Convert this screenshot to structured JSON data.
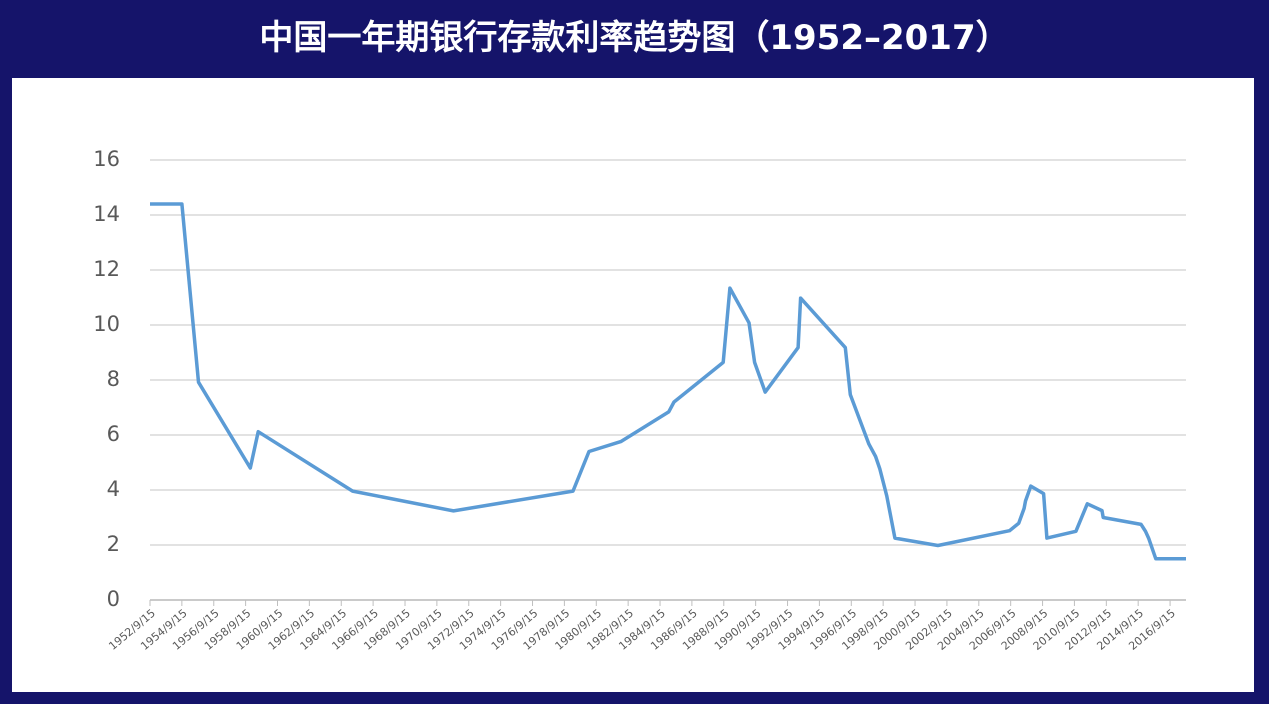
{
  "chart_data": {
    "type": "line",
    "title": "中国一年期银行存款利率趋势图（1952–2017）",
    "x": [
      "1952/9/15",
      "1954/9/15",
      "1955/10/1",
      "1959/1/1",
      "1959/7/1",
      "1965/6/1",
      "1971/10/1",
      "1979/4/1",
      "1980/4/1",
      "1982/4/1",
      "1985/4/1",
      "1985/8/1",
      "1988/9/1",
      "1989/2/1",
      "1990/4/15",
      "1990/8/21",
      "1991/4/21",
      "1993/5/15",
      "1993/7/11",
      "1996/5/1",
      "1996/8/23",
      "1997/10/23",
      "1998/3/25",
      "1998/7/1",
      "1998/12/7",
      "1999/6/10",
      "2002/2/21",
      "2006/8/19",
      "2007/3/18",
      "2007/5/19",
      "2007/7/21",
      "2007/8/22",
      "2007/12/21",
      "2008/10/9",
      "2008/12/23",
      "2010/10/20",
      "2011/7/7",
      "2012/6/8",
      "2012/7/6",
      "2014/11/22",
      "2015/3/1",
      "2015/5/11",
      "2015/10/24",
      "2017/9/15"
    ],
    "series": [
      {
        "color": "#5b9bd5",
        "values": [
          14.4,
          14.4,
          7.92,
          4.8,
          6.12,
          3.96,
          3.24,
          3.96,
          5.4,
          5.76,
          6.84,
          7.2,
          8.64,
          11.34,
          10.08,
          8.64,
          7.56,
          9.18,
          10.98,
          9.18,
          7.47,
          5.67,
          5.22,
          4.77,
          3.78,
          2.25,
          1.98,
          2.52,
          2.79,
          3.06,
          3.33,
          3.6,
          4.14,
          3.87,
          2.25,
          2.5,
          3.5,
          3.25,
          3.0,
          2.75,
          2.5,
          2.25,
          1.5,
          1.5
        ]
      }
    ],
    "xlim": [
      "1952/9/15",
      "2017/9/15"
    ],
    "xticks": [
      "1952/9/15",
      "1954/9/15",
      "1956/9/15",
      "1958/9/15",
      "1960/9/15",
      "1962/9/15",
      "1964/9/15",
      "1966/9/15",
      "1968/9/15",
      "1970/9/15",
      "1972/9/15",
      "1974/9/15",
      "1976/9/15",
      "1978/9/15",
      "1980/9/15",
      "1982/9/15",
      "1984/9/15",
      "1986/9/15",
      "1988/9/15",
      "1990/9/15",
      "1992/9/15",
      "1994/9/15",
      "1996/9/15",
      "1998/9/15",
      "2000/9/15",
      "2002/9/15",
      "2004/9/15",
      "2006/9/15",
      "2008/9/15",
      "2010/9/15",
      "2012/9/15",
      "2014/9/15",
      "2016/9/15"
    ],
    "ylim": [
      0,
      16
    ],
    "yticks": [
      0,
      2,
      4,
      6,
      8,
      10,
      12,
      14,
      16
    ],
    "grid": true
  }
}
